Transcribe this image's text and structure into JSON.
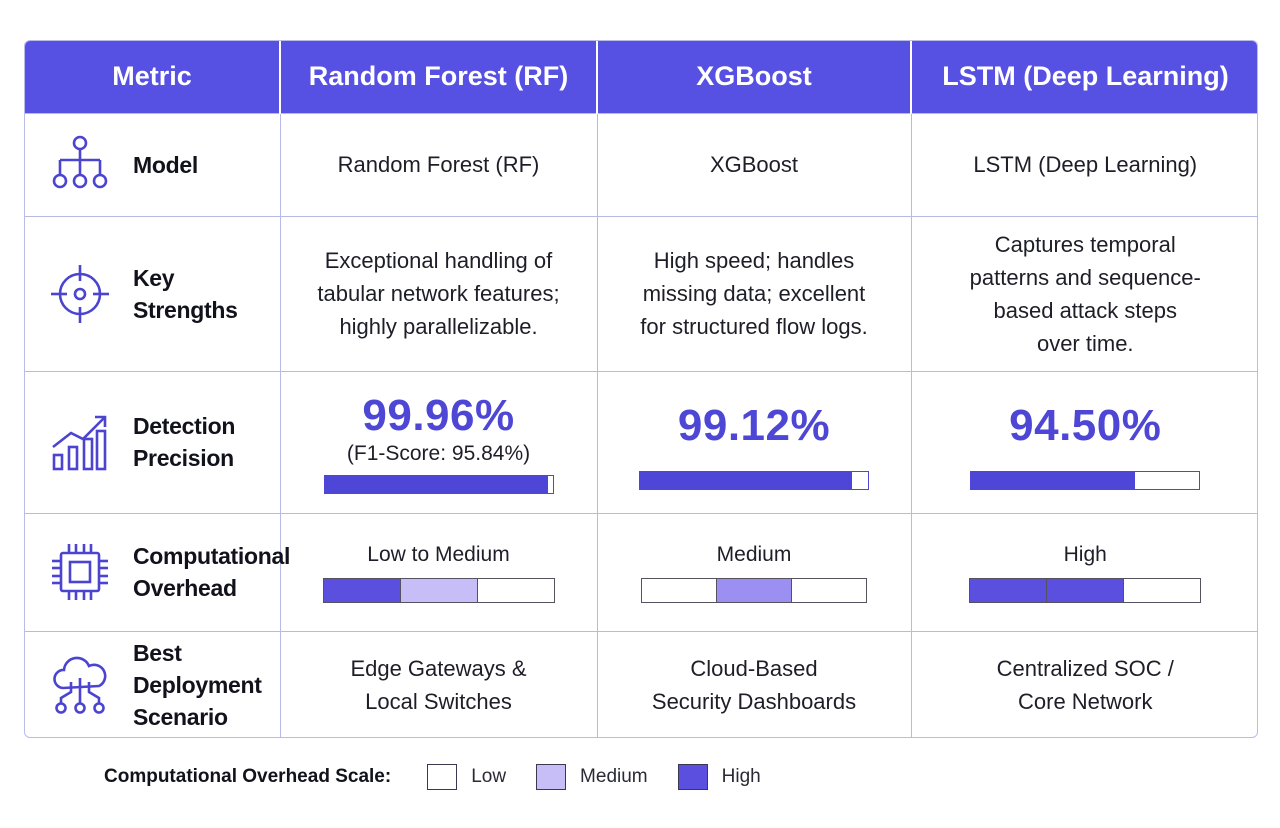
{
  "header": {
    "col_metric": "Metric",
    "col_rf": "Random Forest (RF)",
    "col_xgb": "XGBoost",
    "col_lstm": "LSTM (Deep Learning)"
  },
  "rows": {
    "model": {
      "label": "Model",
      "icon": "hierarchy-icon",
      "rf": "Random Forest (RF)",
      "xgb": "XGBoost",
      "lstm": "LSTM (Deep Learning)"
    },
    "strengths": {
      "label": "Key Strengths",
      "icon": "target-icon",
      "rf": [
        "Exceptional handling of",
        "tabular network features;",
        "highly parallelizable."
      ],
      "xgb": [
        "High speed; handles",
        "missing data; excellent",
        "for structured flow logs."
      ],
      "lstm": [
        "Captures temporal",
        "patterns and sequence-",
        "based attack steps",
        "over time."
      ]
    },
    "precision": {
      "label_line1": "Detection",
      "label_line2": "Precision",
      "icon": "growth-chart-icon",
      "rf_value": "99.96%",
      "rf_sub": "(F1-Score: 95.84%)",
      "rf_fill": 0.98,
      "xgb_value": "99.12%",
      "xgb_fill": 0.93,
      "lstm_value": "94.50%",
      "lstm_fill": 0.72
    },
    "overhead": {
      "label_line1": "Computational",
      "label_line2": "Overhead",
      "icon": "cpu-chip-icon",
      "rf": "Low to Medium",
      "xgb": "Medium",
      "lstm": "High"
    },
    "deploy": {
      "label_line1": "Best Deployment",
      "label_line2": "Scenario",
      "icon": "cloud-network-icon",
      "rf": [
        "Edge Gateways &",
        "Local Switches"
      ],
      "xgb": [
        "Cloud-Based",
        "Security Dashboards"
      ],
      "lstm": [
        "Centralized SOC /",
        "Core Network"
      ]
    }
  },
  "legend": {
    "title": "Computational Overhead Scale:",
    "low": "Low",
    "medium": "Medium",
    "high": "High"
  },
  "colors": {
    "header_bg": "#5650e3",
    "accent": "#4e47d6",
    "high": "#5b4fe0",
    "medium": "#c7bdf7",
    "low": "#ffffff"
  }
}
